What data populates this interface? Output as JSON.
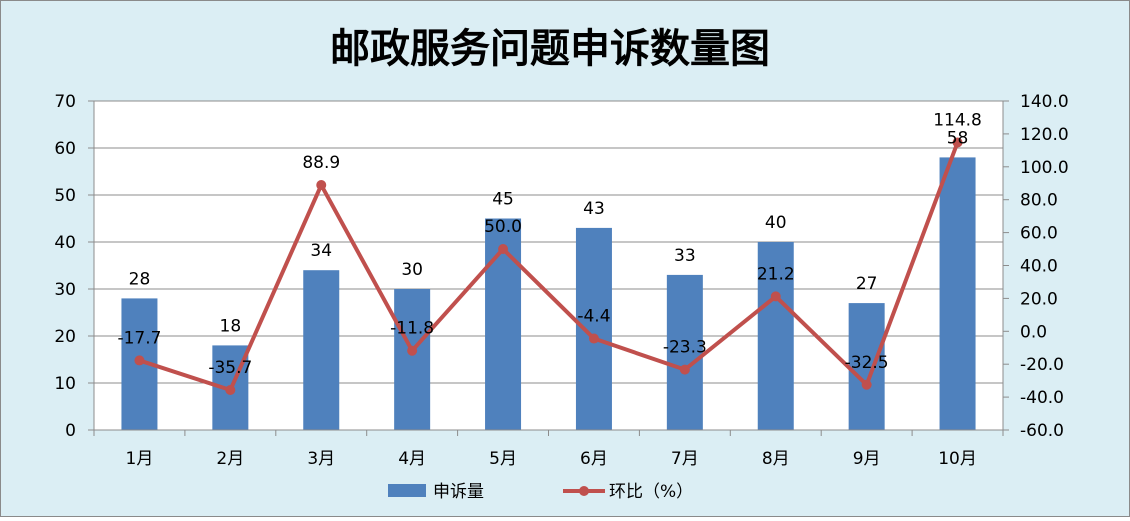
{
  "chart_data": {
    "type": "bar",
    "title": "邮政服务问题申诉数量图",
    "categories": [
      "1月",
      "2月",
      "3月",
      "4月",
      "5月",
      "6月",
      "7月",
      "8月",
      "9月",
      "10月"
    ],
    "series": [
      {
        "name": "申诉量",
        "type": "bar",
        "axis": "left",
        "values": [
          28,
          18,
          34,
          30,
          45,
          43,
          33,
          40,
          27,
          58
        ],
        "labels": [
          "28",
          "18",
          "34",
          "30",
          "45",
          "43",
          "33",
          "40",
          "27",
          "58"
        ]
      },
      {
        "name": "环比（%）",
        "type": "line",
        "axis": "right",
        "values": [
          -17.7,
          -35.7,
          88.9,
          -11.8,
          50.0,
          -4.4,
          -23.3,
          21.2,
          -32.5,
          114.8
        ],
        "labels": [
          "-17.7",
          "-35.7",
          "88.9",
          "-11.8",
          "50.0",
          "-4.4",
          "-23.3",
          "21.2",
          "-32.5",
          "114.8"
        ]
      }
    ],
    "ylim_left": [
      0,
      70
    ],
    "yticks_left": [
      "0",
      "10",
      "20",
      "30",
      "40",
      "50",
      "60",
      "70"
    ],
    "ylim_right": [
      -60,
      140
    ],
    "yticks_right": [
      "-60.0",
      "-40.0",
      "-20.0",
      "0.0",
      "20.0",
      "40.0",
      "60.0",
      "80.0",
      "100.0",
      "120.0",
      "140.0"
    ],
    "grid": true,
    "legend_position": "bottom",
    "colors": {
      "background": "#dbeef4",
      "bar": "#4f81bd",
      "line": "#c0504d",
      "grid": "#8c8c8c"
    }
  }
}
